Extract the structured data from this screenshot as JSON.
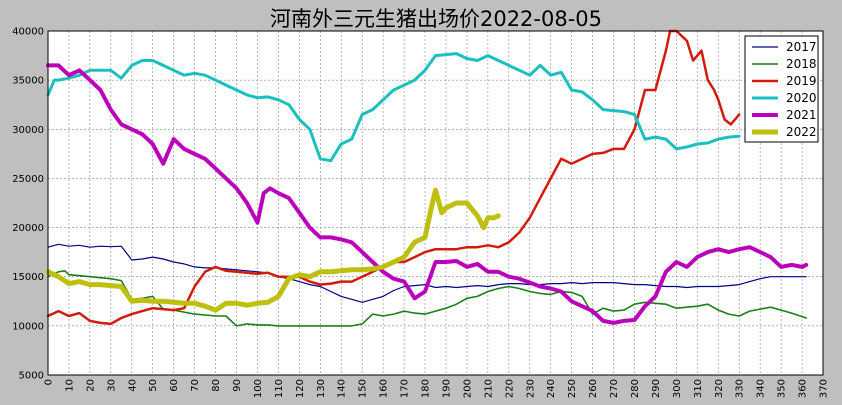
{
  "chart_data": {
    "type": "line",
    "title": "河南外三元生猪出场价2022-08-05",
    "xlabel": "",
    "ylabel": "",
    "xlim": [
      0,
      370
    ],
    "ylim": [
      5000,
      40000
    ],
    "xticks": [
      0,
      10,
      20,
      30,
      40,
      50,
      60,
      70,
      80,
      90,
      100,
      110,
      120,
      130,
      140,
      150,
      160,
      170,
      180,
      190,
      200,
      210,
      220,
      230,
      240,
      250,
      260,
      270,
      280,
      290,
      300,
      310,
      320,
      330,
      340,
      350,
      360,
      370
    ],
    "yticks": [
      5000,
      10000,
      15000,
      20000,
      25000,
      30000,
      35000,
      40000
    ],
    "grid": true,
    "legend_position": "top-right",
    "series": [
      {
        "name": "2017",
        "color": "#00008b",
        "width": 1.2,
        "x": [
          0,
          5,
          10,
          15,
          20,
          25,
          30,
          35,
          40,
          45,
          50,
          55,
          60,
          65,
          70,
          75,
          80,
          85,
          90,
          95,
          100,
          105,
          110,
          115,
          120,
          125,
          130,
          135,
          140,
          145,
          150,
          155,
          160,
          165,
          170,
          175,
          180,
          185,
          190,
          195,
          200,
          205,
          210,
          215,
          220,
          225,
          230,
          235,
          240,
          245,
          250,
          255,
          260,
          265,
          270,
          275,
          280,
          285,
          290,
          295,
          300,
          305,
          310,
          315,
          320,
          325,
          330,
          335,
          340,
          345,
          350,
          355,
          362
        ],
        "y": [
          18000,
          18300,
          18100,
          18200,
          18000,
          18100,
          18050,
          18100,
          16700,
          16800,
          17000,
          16800,
          16500,
          16300,
          16000,
          15900,
          15900,
          15800,
          15700,
          15600,
          15500,
          15400,
          15000,
          14800,
          14500,
          14200,
          14000,
          13500,
          13000,
          12700,
          12400,
          12700,
          13000,
          13600,
          14000,
          14100,
          14200,
          13900,
          14000,
          13900,
          14000,
          14100,
          14000,
          14200,
          14300,
          14300,
          14200,
          14200,
          14300,
          14300,
          14400,
          14300,
          14400,
          14400,
          14400,
          14300,
          14200,
          14200,
          14100,
          14000,
          14000,
          13900,
          14000,
          14000,
          14000,
          14100,
          14200,
          14500,
          14800,
          15000,
          15000,
          15000,
          15000
        ]
      },
      {
        "name": "2018",
        "color": "#1a7f1a",
        "width": 1.6,
        "x": [
          0,
          5,
          8,
          10,
          15,
          20,
          25,
          30,
          35,
          40,
          45,
          50,
          55,
          60,
          65,
          70,
          75,
          80,
          85,
          90,
          95,
          100,
          105,
          110,
          115,
          120,
          125,
          130,
          135,
          140,
          145,
          150,
          155,
          160,
          165,
          170,
          175,
          180,
          185,
          190,
          195,
          200,
          205,
          210,
          215,
          220,
          225,
          230,
          235,
          240,
          245,
          250,
          255,
          260,
          265,
          270,
          275,
          280,
          285,
          290,
          295,
          300,
          305,
          310,
          315,
          320,
          325,
          330,
          335,
          340,
          345,
          350,
          355,
          362
        ],
        "y": [
          15000,
          15500,
          15600,
          15200,
          15100,
          15000,
          14900,
          14800,
          14600,
          12700,
          12800,
          13000,
          11700,
          11600,
          11400,
          11200,
          11100,
          11000,
          11000,
          10000,
          10200,
          10100,
          10100,
          10000,
          10000,
          10000,
          10000,
          10000,
          10000,
          10000,
          10000,
          10200,
          11200,
          11000,
          11200,
          11500,
          11300,
          11200,
          11500,
          11800,
          12200,
          12800,
          13000,
          13500,
          13800,
          14000,
          13800,
          13500,
          13300,
          13200,
          13500,
          13400,
          13000,
          11200,
          11800,
          11500,
          11600,
          12200,
          12400,
          12300,
          12200,
          11800,
          11900,
          12000,
          12200,
          11600,
          11200,
          11000,
          11500,
          11700,
          11900,
          11600,
          11300,
          10800
        ]
      },
      {
        "name": "2019",
        "color": "#d11c0c",
        "width": 2.5,
        "x": [
          0,
          5,
          10,
          15,
          20,
          25,
          30,
          35,
          40,
          45,
          50,
          55,
          60,
          65,
          70,
          75,
          80,
          85,
          90,
          95,
          100,
          105,
          110,
          115,
          120,
          125,
          130,
          135,
          140,
          145,
          150,
          155,
          160,
          165,
          170,
          175,
          180,
          185,
          190,
          195,
          200,
          205,
          210,
          215,
          220,
          225,
          230,
          235,
          240,
          245,
          250,
          255,
          260,
          265,
          270,
          275,
          280,
          285,
          290,
          295,
          297,
          300,
          305,
          308,
          312,
          315,
          318,
          320,
          323,
          326,
          330
        ],
        "y": [
          11000,
          11500,
          11000,
          11300,
          10500,
          10300,
          10200,
          10800,
          11200,
          11500,
          11800,
          11700,
          11600,
          11800,
          14000,
          15500,
          16000,
          15600,
          15500,
          15400,
          15300,
          15400,
          15000,
          15000,
          15000,
          14500,
          14200,
          14300,
          14500,
          14500,
          15000,
          15500,
          16000,
          16500,
          16500,
          17000,
          17500,
          17800,
          17800,
          17800,
          18000,
          18000,
          18200,
          18000,
          18500,
          19500,
          21000,
          23000,
          25000,
          27000,
          26500,
          27000,
          27500,
          27600,
          28000,
          28000,
          30000,
          34000,
          34000,
          38000,
          40000,
          40000,
          39000,
          37000,
          38000,
          35000,
          34000,
          33000,
          31000,
          30500,
          31500
        ]
      },
      {
        "name": "2020",
        "color": "#1cbfbf",
        "width": 3,
        "x": [
          0,
          3,
          5,
          10,
          15,
          20,
          25,
          30,
          35,
          40,
          45,
          50,
          55,
          60,
          65,
          70,
          75,
          80,
          85,
          90,
          95,
          100,
          105,
          110,
          115,
          120,
          125,
          130,
          135,
          140,
          145,
          150,
          155,
          160,
          165,
          170,
          175,
          180,
          185,
          190,
          195,
          200,
          205,
          210,
          215,
          220,
          225,
          230,
          235,
          240,
          245,
          250,
          255,
          260,
          265,
          270,
          275,
          280,
          285,
          290,
          295,
          300,
          305,
          310,
          315,
          320,
          325,
          330
        ],
        "y": [
          33500,
          35000,
          35000,
          35200,
          35500,
          36000,
          36000,
          36000,
          35200,
          36500,
          37000,
          37000,
          36500,
          36000,
          35500,
          35700,
          35500,
          35000,
          34500,
          34000,
          33500,
          33200,
          33300,
          33000,
          32500,
          31000,
          30000,
          27000,
          26800,
          28500,
          29000,
          31500,
          32000,
          33000,
          34000,
          34500,
          35000,
          36000,
          37500,
          37600,
          37700,
          37200,
          37000,
          37500,
          37000,
          36500,
          36000,
          35500,
          36500,
          35500,
          35800,
          34000,
          33800,
          33000,
          32000,
          31900,
          31800,
          31500,
          29000,
          29200,
          29000,
          28000,
          28200,
          28500,
          28600,
          29000,
          29200,
          29300
        ]
      },
      {
        "name": "2021",
        "color": "#bb00bb",
        "width": 4,
        "x": [
          0,
          5,
          10,
          15,
          20,
          25,
          30,
          35,
          40,
          45,
          50,
          55,
          60,
          65,
          70,
          75,
          80,
          85,
          90,
          95,
          100,
          103,
          106,
          110,
          115,
          120,
          125,
          130,
          135,
          140,
          145,
          150,
          155,
          160,
          165,
          170,
          175,
          180,
          185,
          190,
          195,
          200,
          205,
          210,
          215,
          220,
          225,
          230,
          235,
          240,
          245,
          250,
          255,
          260,
          265,
          270,
          275,
          280,
          285,
          290,
          295,
          300,
          305,
          310,
          315,
          320,
          325,
          330,
          335,
          340,
          345,
          350,
          355,
          360,
          362
        ],
        "y": [
          36500,
          36500,
          35500,
          36000,
          35000,
          34000,
          32000,
          30500,
          30000,
          29500,
          28500,
          26500,
          29000,
          28000,
          27500,
          27000,
          26000,
          25000,
          24000,
          22500,
          20500,
          23500,
          24000,
          23500,
          23000,
          21500,
          20000,
          19000,
          19000,
          18800,
          18500,
          17500,
          16500,
          15500,
          14800,
          14500,
          12800,
          13500,
          16500,
          16500,
          16600,
          16000,
          16300,
          15500,
          15500,
          15000,
          14800,
          14400,
          14000,
          13800,
          13500,
          12500,
          12000,
          11500,
          10500,
          10300,
          10500,
          10600,
          12000,
          13000,
          15500,
          16500,
          16000,
          17000,
          17500,
          17800,
          17500,
          17800,
          18000,
          17500,
          17000,
          16000,
          16200,
          16000,
          16200
        ]
      },
      {
        "name": "2022",
        "color": "#bfbf10",
        "width": 5,
        "x": [
          0,
          5,
          10,
          15,
          20,
          25,
          30,
          35,
          40,
          45,
          50,
          55,
          60,
          65,
          70,
          75,
          80,
          85,
          90,
          95,
          100,
          105,
          110,
          115,
          120,
          125,
          130,
          135,
          140,
          145,
          150,
          155,
          160,
          165,
          170,
          175,
          180,
          183,
          185,
          188,
          190,
          195,
          200,
          205,
          208,
          210,
          213,
          215
        ],
        "y": [
          15500,
          15000,
          14300,
          14500,
          14200,
          14200,
          14100,
          14000,
          12500,
          12600,
          12500,
          12500,
          12400,
          12300,
          12300,
          12000,
          11600,
          12300,
          12300,
          12100,
          12300,
          12400,
          13000,
          14800,
          15200,
          15000,
          15500,
          15500,
          15600,
          15700,
          15700,
          15800,
          16000,
          16500,
          17000,
          18500,
          19000,
          22000,
          23800,
          21500,
          22000,
          22500,
          22500,
          21200,
          20000,
          21000,
          21000,
          21200
        ]
      }
    ]
  }
}
